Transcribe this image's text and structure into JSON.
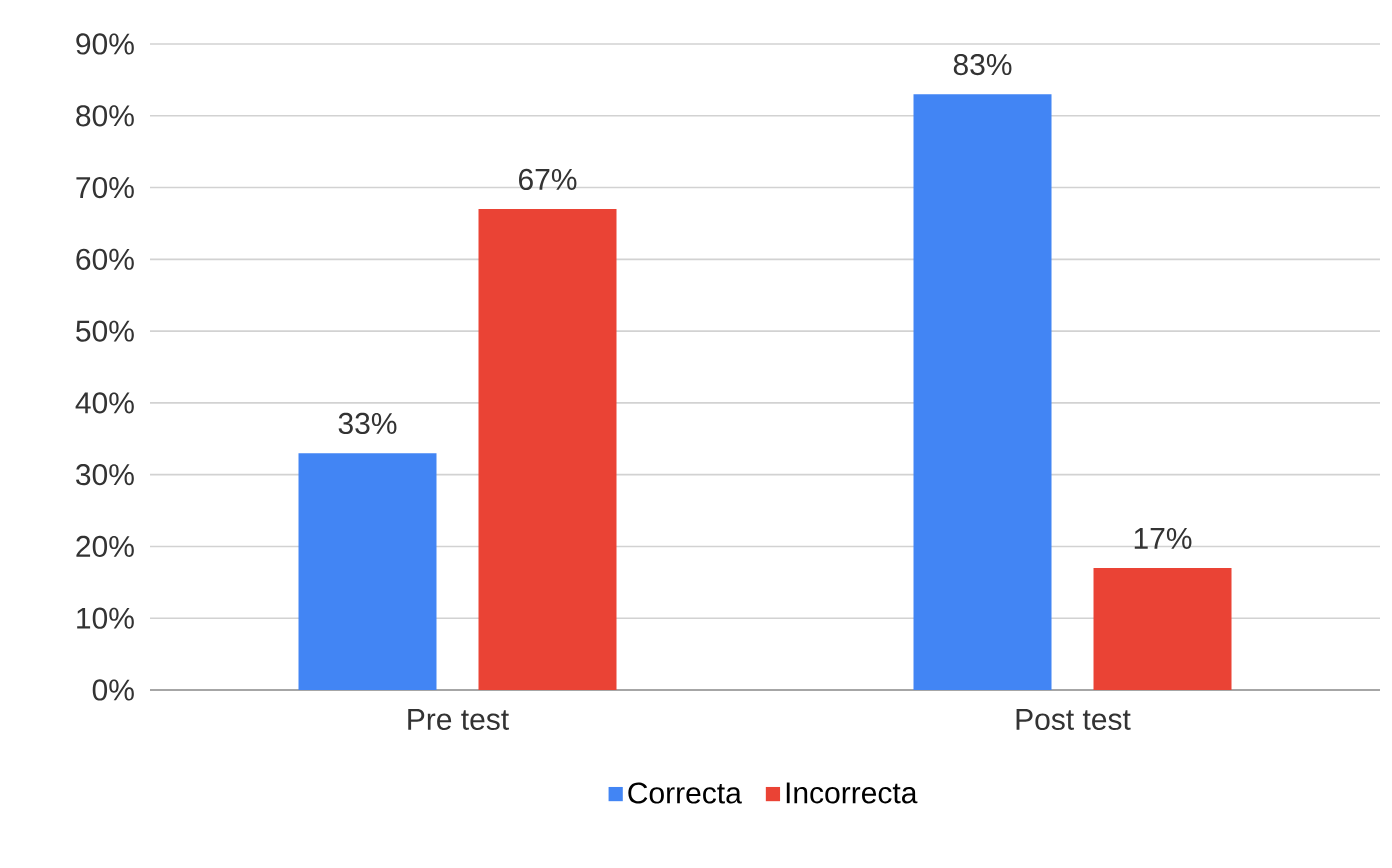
{
  "chart_data": {
    "type": "bar",
    "categories": [
      "Pre test",
      "Post test"
    ],
    "series": [
      {
        "name": "Correcta",
        "color": "#4285f4",
        "values": [
          33,
          83
        ],
        "value_labels": [
          "33%",
          "83%"
        ]
      },
      {
        "name": "Incorrecta",
        "color": "#ea4335",
        "values": [
          67,
          17
        ],
        "value_labels": [
          "67%",
          "17%"
        ]
      }
    ],
    "ylim": [
      0,
      90
    ],
    "yticks": [
      {
        "value": 0,
        "label": "0%"
      },
      {
        "value": 10,
        "label": "10%"
      },
      {
        "value": 20,
        "label": "20%"
      },
      {
        "value": 30,
        "label": "30%"
      },
      {
        "value": 40,
        "label": "40%"
      },
      {
        "value": 50,
        "label": "50%"
      },
      {
        "value": 60,
        "label": "60%"
      },
      {
        "value": 70,
        "label": "70%"
      },
      {
        "value": 80,
        "label": "80%"
      },
      {
        "value": 90,
        "label": "90%"
      }
    ],
    "grid": "y",
    "legend": "bottom"
  }
}
